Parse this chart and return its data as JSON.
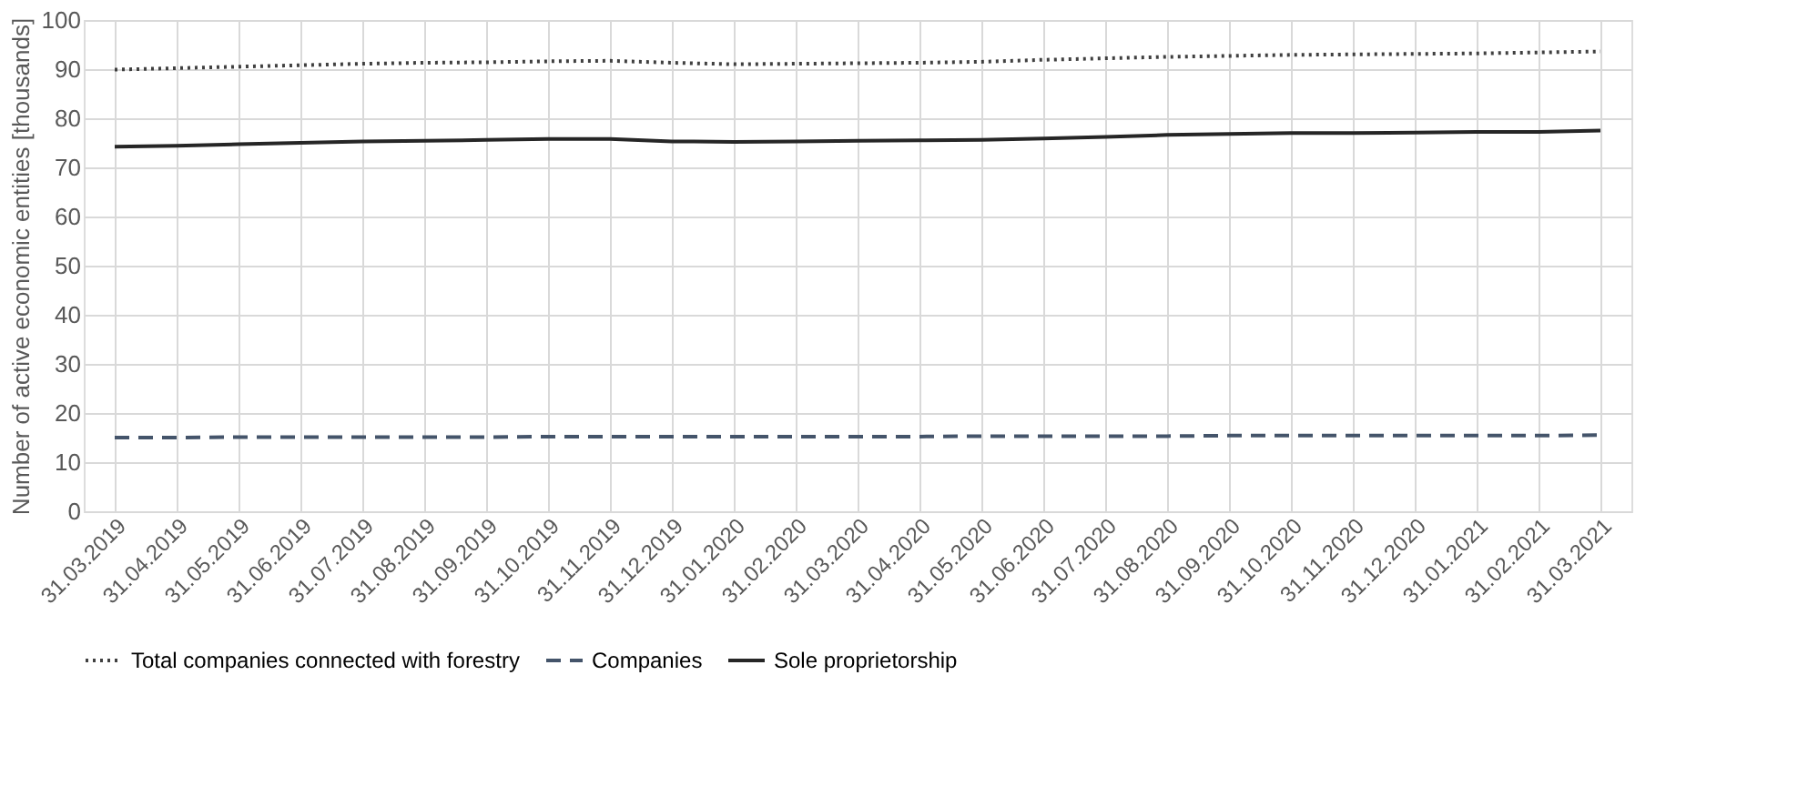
{
  "chart_data": {
    "type": "line",
    "ylabel": "Number of active economic entities [thousands]",
    "categories": [
      "31.03.2019",
      "31.04.2019",
      "31.05.2019",
      "31.06.2019",
      "31.07.2019",
      "31.08.2019",
      "31.09.2019",
      "31.10.2019",
      "31.11.2019",
      "31.12.2019",
      "31.01.2020",
      "31.02.2020",
      "31.03.2020",
      "31.04.2020",
      "31.05.2020",
      "31.06.2020",
      "31.07.2020",
      "31.08.2020",
      "31.09.2020",
      "31.10.2020",
      "31.11.2020",
      "31.12.2020",
      "31.01.2021",
      "31.02.2021",
      "31.03.2021"
    ],
    "series": [
      {
        "name": "Total companies connected with forestry",
        "color": "#404040",
        "line_style": "dotted",
        "values": [
          89.9,
          90.2,
          90.5,
          90.8,
          91.1,
          91.3,
          91.4,
          91.6,
          91.7,
          91.3,
          91.0,
          91.1,
          91.2,
          91.3,
          91.5,
          91.9,
          92.2,
          92.5,
          92.7,
          92.9,
          93.0,
          93.1,
          93.2,
          93.4,
          93.6
        ]
      },
      {
        "name": "Companies",
        "color": "#44546a",
        "line_style": "dashed",
        "values": [
          15.0,
          15.0,
          15.1,
          15.1,
          15.1,
          15.1,
          15.1,
          15.2,
          15.2,
          15.2,
          15.2,
          15.2,
          15.2,
          15.2,
          15.3,
          15.3,
          15.3,
          15.3,
          15.4,
          15.4,
          15.4,
          15.4,
          15.4,
          15.4,
          15.5
        ]
      },
      {
        "name": "Sole proprietorship",
        "color": "#262626",
        "line_style": "solid",
        "values": [
          74.2,
          74.4,
          74.7,
          75.0,
          75.3,
          75.4,
          75.6,
          75.8,
          75.8,
          75.3,
          75.2,
          75.3,
          75.4,
          75.5,
          75.6,
          75.9,
          76.2,
          76.6,
          76.8,
          77.0,
          77.0,
          77.1,
          77.2,
          77.2,
          77.5
        ]
      }
    ],
    "ylim": [
      0,
      100
    ],
    "yticks": [
      0,
      10,
      20,
      30,
      40,
      50,
      60,
      70,
      80,
      90,
      100
    ],
    "grid": true,
    "legend": "bottom",
    "marker": "none"
  }
}
